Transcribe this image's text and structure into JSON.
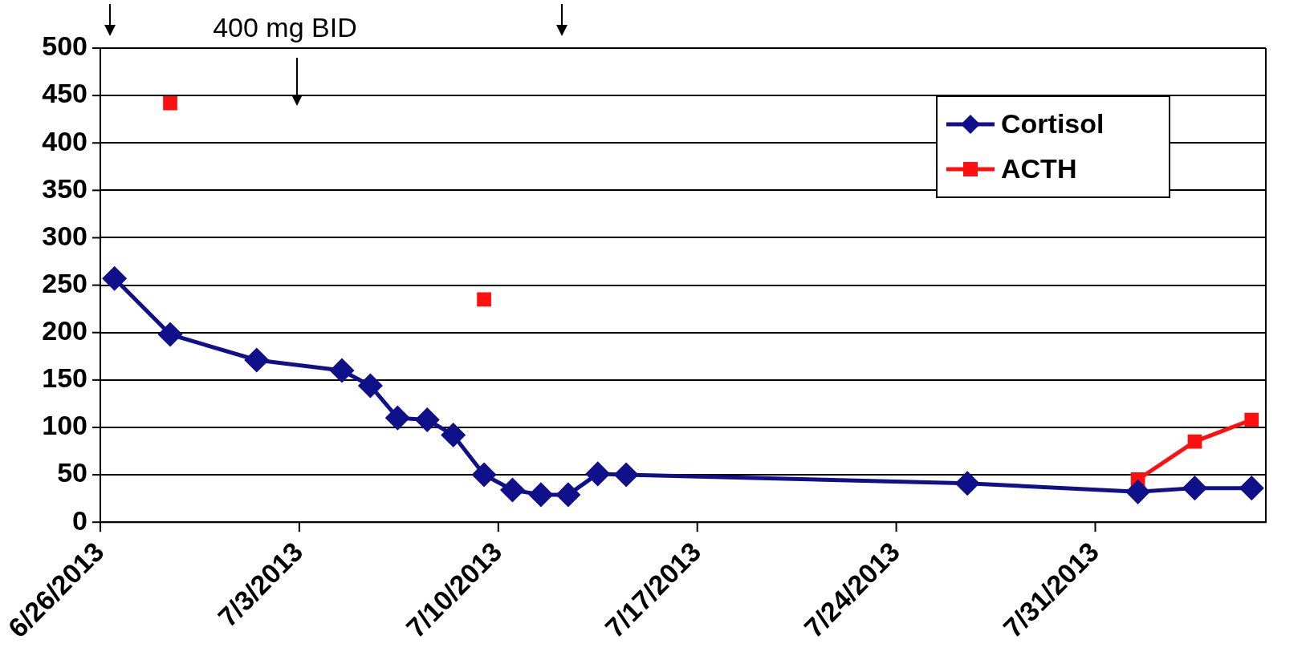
{
  "chart_data": {
    "type": "line",
    "annotations": [
      "400 mg BID"
    ],
    "xlim": [
      "2013-06-26",
      "2013-08-06"
    ],
    "xticks": [
      {
        "value": "2013-06-26",
        "label": "6/26/2013"
      },
      {
        "value": "2013-07-03",
        "label": "7/3/2013"
      },
      {
        "value": "2013-07-10",
        "label": "7/10/2013"
      },
      {
        "value": "2013-07-17",
        "label": "7/17/2013"
      },
      {
        "value": "2013-07-24",
        "label": "7/24/2013"
      },
      {
        "value": "2013-07-31",
        "label": "7/31/2013"
      }
    ],
    "ylim": [
      0,
      500
    ],
    "yticks": [
      0,
      50,
      100,
      150,
      200,
      250,
      300,
      350,
      400,
      450,
      500
    ],
    "grid": "y",
    "legend": "top right",
    "series": [
      {
        "name": "Cortisol",
        "color": "#10108a",
        "marker": "diamond",
        "x": [
          "2013-06-26T12:00",
          "2013-06-28T11:00",
          "2013-07-01T12:00",
          "2013-07-04T12:00",
          "2013-07-05T12:00",
          "2013-07-06T11:00",
          "2013-07-07T12:00",
          "2013-07-08T10:00",
          "2013-07-09T12:00",
          "2013-07-10T12:00",
          "2013-07-11T12:00",
          "2013-07-12T11:00",
          "2013-07-13T12:00",
          "2013-07-14T12:00",
          "2013-07-26T12:00",
          "2013-08-01T12:00",
          "2013-08-03T12:00",
          "2013-08-05T12:00"
        ],
        "values": [
          257,
          198,
          171,
          160,
          144,
          110,
          108,
          92,
          50,
          34,
          29,
          29,
          51,
          50,
          41,
          32,
          36,
          36
        ]
      },
      {
        "name": "ACTH",
        "color": "#ff1010",
        "marker": "square",
        "x": [
          "2013-06-28T11:00",
          "2013-07-04T12:00",
          "2013-07-09T12:00",
          "2013-07-20T12:00",
          "2013-08-01T12:00",
          "2013-08-03T12:00",
          "2013-08-05T12:00"
        ],
        "values": [
          442,
          null,
          235,
          null,
          45,
          85,
          108
        ]
      }
    ]
  }
}
